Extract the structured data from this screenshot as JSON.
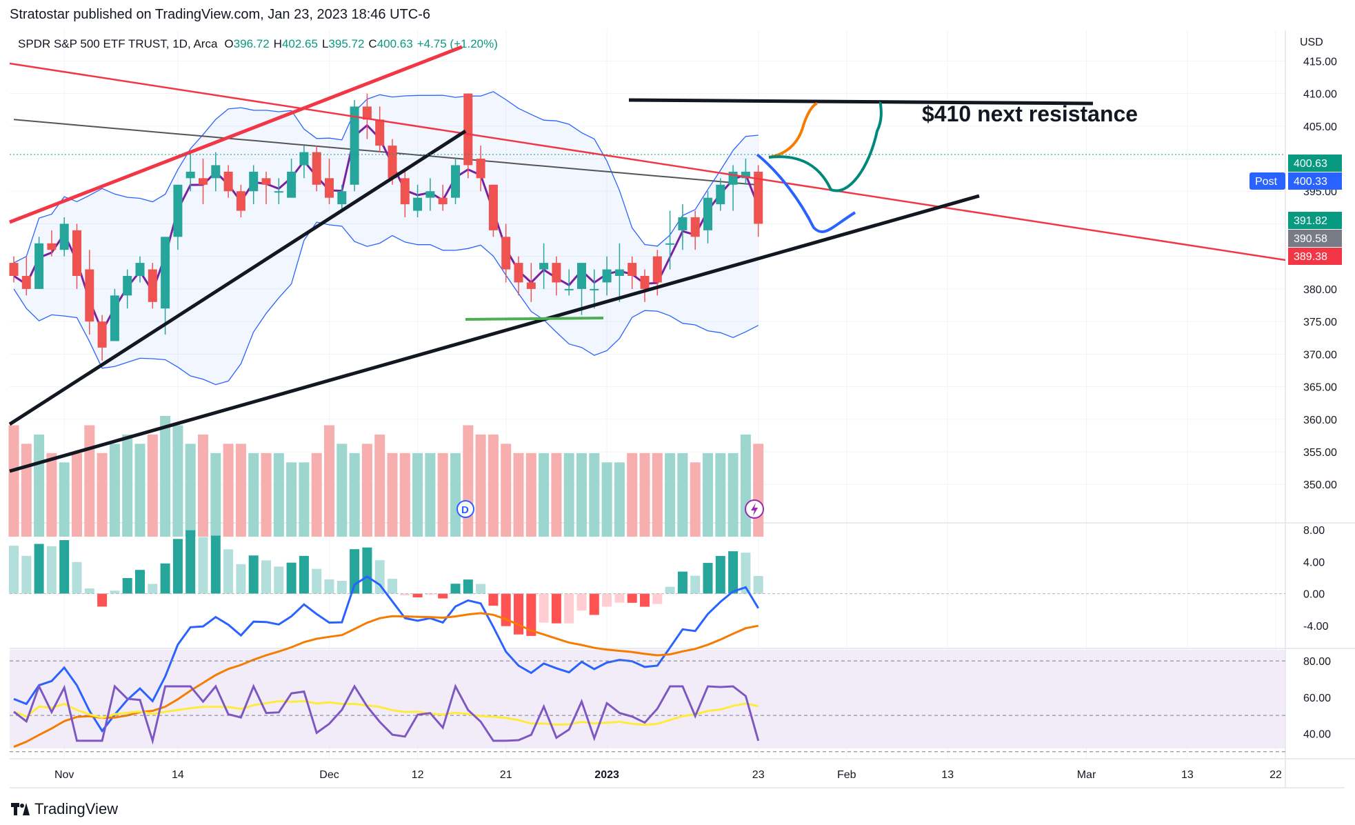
{
  "publisher": "Stratostar published on TradingView.com, Jan 23, 2023 18:46 UTC-6",
  "branding": {
    "name": "TradingView",
    "icon": "tradingview-logo"
  },
  "legend": {
    "symbol": "SPDR S&P 500 ETF TRUST, 1D, Arca",
    "o_label": "O",
    "o_value": "396.72",
    "h_label": "H",
    "h_value": "402.65",
    "l_label": "L",
    "l_value": "395.72",
    "c_label": "C",
    "c_value": "400.63",
    "change": "+4.75 (+1.20%)"
  },
  "annotation": "$410 next resistance",
  "currency": "USD",
  "price_tags": [
    {
      "text": "400.63",
      "price": 400.63,
      "color": "#089981"
    },
    {
      "text": "400.33",
      "price": 400.33,
      "color": "#2962ff",
      "badge": "Post"
    },
    {
      "text": "391.82",
      "price": 391.82,
      "color": "#089981"
    },
    {
      "text": "390.58",
      "price": 390.58,
      "color": "#787b86"
    },
    {
      "text": "389.38",
      "price": 389.38,
      "color": "#f23645"
    }
  ],
  "colors": {
    "up": "#26a69a",
    "down": "#ef5350",
    "vol_up": "#9dd5cf",
    "vol_down": "#f7aeae",
    "bb": "#2962ff",
    "ema": "#7b1fa2",
    "ma": "#555555",
    "macd": "#2962ff",
    "signal": "#f57c00",
    "rsi": "#7e57c2",
    "rsi_ma": "#ffeb3b"
  },
  "chart_data": {
    "type": "candlestick",
    "price_axis": {
      "range": [
        346,
        418
      ],
      "ticks": [
        "350.00",
        "355.00",
        "360.00",
        "365.00",
        "370.00",
        "375.00",
        "380.00",
        "385.00",
        "390.00",
        "395.00",
        "400.00",
        "405.00",
        "410.00",
        "415.00"
      ]
    },
    "x_axis": {
      "labels": [
        {
          "text": "Nov",
          "i": 4
        },
        {
          "text": "14",
          "i": 13
        },
        {
          "text": "Dec",
          "i": 25
        },
        {
          "text": "12",
          "i": 32
        },
        {
          "text": "21",
          "i": 39
        },
        {
          "text": "2023",
          "i": 47
        },
        {
          "text": "23",
          "i": 59
        },
        {
          "text": "Feb",
          "i": 66
        },
        {
          "text": "13",
          "i": 74
        },
        {
          "text": "Mar",
          "i": 85
        },
        {
          "text": "13",
          "i": 93
        },
        {
          "text": "22",
          "i": 100
        }
      ]
    },
    "ohlc": [
      [
        384,
        385,
        381,
        382
      ],
      [
        382,
        385,
        379,
        380
      ],
      [
        380,
        388,
        380,
        387
      ],
      [
        387,
        389,
        385,
        386
      ],
      [
        386,
        391,
        385,
        390
      ],
      [
        389,
        390,
        380,
        382
      ],
      [
        383,
        386,
        373,
        375
      ],
      [
        375,
        376,
        369,
        371
      ],
      [
        372,
        380,
        372,
        379
      ],
      [
        379,
        383,
        377,
        382
      ],
      [
        382,
        385,
        381,
        384
      ],
      [
        383,
        384,
        377,
        378
      ],
      [
        377,
        388,
        373,
        388
      ],
      [
        388,
        396,
        386,
        396
      ],
      [
        397,
        401,
        395,
        398
      ],
      [
        397,
        400,
        393,
        396
      ],
      [
        397,
        401,
        395,
        399
      ],
      [
        398,
        399,
        394,
        395
      ],
      [
        395,
        396,
        391,
        392
      ],
      [
        395,
        399,
        393,
        398
      ],
      [
        397,
        398,
        393,
        396
      ],
      [
        395,
        397,
        393,
        395
      ],
      [
        394,
        400,
        394,
        398
      ],
      [
        399,
        402,
        397,
        401
      ],
      [
        401,
        402,
        395,
        396
      ],
      [
        397,
        400,
        393,
        394
      ],
      [
        393,
        396,
        392,
        395
      ],
      [
        396,
        409,
        395,
        408
      ],
      [
        408,
        410,
        403,
        406
      ],
      [
        406,
        408,
        401,
        402
      ],
      [
        402,
        403,
        396,
        397
      ],
      [
        397,
        398,
        391,
        393
      ],
      [
        392,
        396,
        391,
        394
      ],
      [
        394,
        397,
        392,
        395
      ],
      [
        394,
        396,
        392,
        393
      ],
      [
        394,
        400,
        393,
        399
      ],
      [
        410,
        410,
        397,
        399
      ],
      [
        400,
        402,
        395,
        397
      ],
      [
        396,
        396,
        388,
        389
      ],
      [
        388,
        390,
        381,
        383
      ],
      [
        384,
        385,
        379,
        381
      ],
      [
        381,
        384,
        378,
        380
      ],
      [
        383,
        387,
        380,
        384
      ],
      [
        384,
        385,
        379,
        381
      ],
      [
        380,
        383,
        379,
        380
      ],
      [
        380,
        384,
        376,
        384
      ],
      [
        380,
        383,
        377,
        380
      ],
      [
        381,
        385,
        379,
        383
      ],
      [
        382,
        387,
        378,
        383
      ],
      [
        384,
        385,
        380,
        382
      ],
      [
        382,
        383,
        378,
        380
      ],
      [
        385,
        386,
        379,
        381
      ],
      [
        387,
        392,
        383,
        387
      ],
      [
        389,
        393,
        386,
        391
      ],
      [
        391,
        392,
        386,
        388
      ],
      [
        389,
        395,
        387,
        394
      ],
      [
        393,
        397,
        392,
        396
      ],
      [
        396,
        399,
        392,
        398
      ],
      [
        397,
        400,
        396,
        398
      ],
      [
        398,
        399,
        388,
        390
      ]
    ],
    "volume": [
      12,
      10,
      11,
      9,
      8,
      9,
      12,
      9,
      10,
      11,
      10,
      11,
      13,
      12,
      10,
      11,
      9,
      10,
      10,
      9,
      9,
      9,
      8,
      8,
      9,
      12,
      10,
      9,
      10,
      11,
      9,
      9,
      9,
      9,
      9,
      9,
      12,
      11,
      11,
      10,
      9,
      9,
      9,
      9,
      9,
      9,
      9,
      8,
      8,
      9,
      9,
      9,
      9,
      9,
      8,
      9,
      9,
      9,
      11,
      10
    ],
    "macd": {
      "range": [
        -6,
        8
      ],
      "ticks": [
        "8.00",
        "4.00",
        "0.00",
        "-4.00"
      ]
    },
    "rsi": {
      "range": [
        28,
        85
      ],
      "ticks": [
        "80.00",
        "60.00",
        "40.00"
      ]
    }
  }
}
